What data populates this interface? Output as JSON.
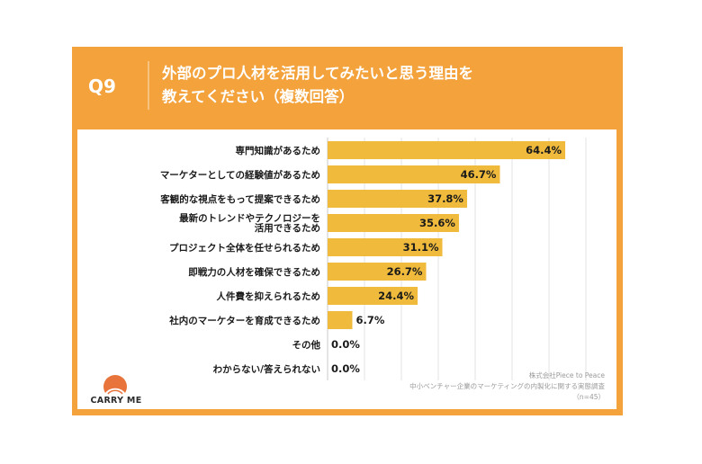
{
  "header": {
    "question_label": "Q9",
    "title_line1": "外部のプロ人材を活用してみたいと思う理由を",
    "title_line2": "教えてください（複数回答）"
  },
  "colors": {
    "frame": "#f3a23c",
    "bar": "#f0bb3c",
    "panel": "#ffffff",
    "logo": "#e8743b"
  },
  "chart_data": {
    "type": "bar",
    "orientation": "horizontal",
    "categories": [
      "専門知識があるため",
      "マーケターとしての経験値があるため",
      "客観的な視点をもって提案できるため",
      "最新のトレンドやテクノロジーを\n活用できるため",
      "プロジェクト全体を任せられるため",
      "即戦力の人材を確保できるため",
      "人件費を抑えられるため",
      "社内のマーケターを育成できるため",
      "その他",
      "わからない/答えられない"
    ],
    "values": [
      64.4,
      46.7,
      37.8,
      35.6,
      31.1,
      26.7,
      24.4,
      6.7,
      0.0,
      0.0
    ],
    "value_labels": [
      "64.4%",
      "46.7%",
      "37.8%",
      "35.6%",
      "31.1%",
      "26.7%",
      "24.4%",
      "6.7%",
      "0.0%",
      "0.0%"
    ],
    "xlim": [
      0,
      70
    ],
    "grid": true
  },
  "logo": {
    "icon": "sunrise-logo-icon",
    "text": "CARRY ME"
  },
  "source": {
    "line1": "株式会社Piece to Peace",
    "line2": "中小ベンチャー企業のマーケティングの内製化に関する実態調査",
    "line3": "（n=45）"
  }
}
